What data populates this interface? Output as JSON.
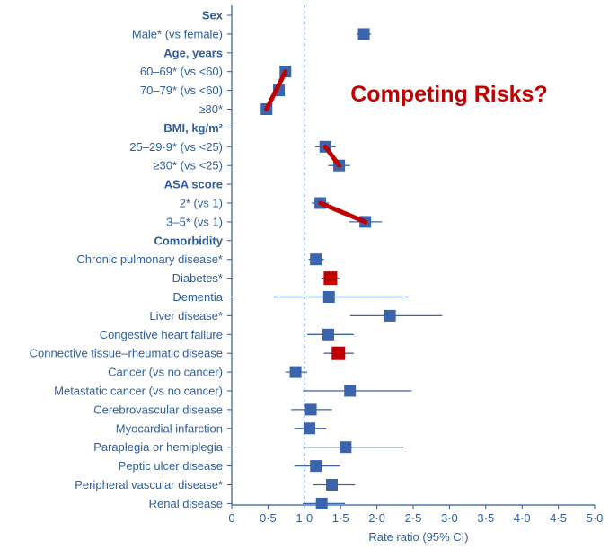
{
  "overlay_title": "Competing Risks?",
  "colors": {
    "text": "#2e5e9e",
    "marker": "#3b64ad",
    "highlight": "#c00000",
    "axis": "#2e5e9e"
  },
  "chart_data": {
    "type": "scatter",
    "subtype": "forest-plot",
    "xlabel": "Rate ratio (95% CI)",
    "xlim": [
      0,
      5
    ],
    "x_ticks": [
      "0",
      "0·5",
      "1·0",
      "1·5",
      "2·0",
      "2·5",
      "3·0",
      "3·5",
      "4·0",
      "4·5",
      "5·0"
    ],
    "reference_line": 1.0,
    "rows": [
      {
        "label": "Sex",
        "header": true
      },
      {
        "label": "Male* (vs female)",
        "value": 1.82,
        "ci": [
          1.72,
          1.92
        ]
      },
      {
        "label": "Age, years",
        "header": true
      },
      {
        "label": "60–69* (vs <60)",
        "value": 0.74,
        "ci": [
          0.69,
          0.79
        ]
      },
      {
        "label": "70–79* (vs <60)",
        "value": 0.65,
        "ci": [
          0.6,
          0.7
        ]
      },
      {
        "label": "≥80*",
        "value": 0.48,
        "ci": [
          0.44,
          0.53
        ]
      },
      {
        "label": "BMI, kg/m²",
        "header": true
      },
      {
        "label": "25–29·9* (vs <25)",
        "value": 1.29,
        "ci": [
          1.15,
          1.43
        ]
      },
      {
        "label": "≥30* (vs <25)",
        "value": 1.48,
        "ci": [
          1.33,
          1.63
        ]
      },
      {
        "label": "ASA score",
        "header": true
      },
      {
        "label": "2* (vs 1)",
        "value": 1.22,
        "ci": [
          1.1,
          1.34
        ]
      },
      {
        "label": "3–5* (vs 1)",
        "value": 1.84,
        "ci": [
          1.62,
          2.07
        ]
      },
      {
        "label": "Comorbidity",
        "header": true
      },
      {
        "label": "Chronic pulmonary disease*",
        "value": 1.16,
        "ci": [
          1.06,
          1.27
        ]
      },
      {
        "label": "Diabetes*",
        "value": 1.36,
        "ci": [
          1.24,
          1.48
        ],
        "highlight": true
      },
      {
        "label": "Dementia",
        "value": 1.34,
        "ci": [
          0.58,
          2.43
        ]
      },
      {
        "label": "Liver disease*",
        "value": 2.18,
        "ci": [
          1.63,
          2.9
        ]
      },
      {
        "label": "Congestive heart failure",
        "value": 1.33,
        "ci": [
          1.04,
          1.68
        ]
      },
      {
        "label": "Connective tissue–rheumatic disease",
        "value": 1.47,
        "ci": [
          1.27,
          1.68
        ],
        "highlight": true
      },
      {
        "label": "Cancer (vs no cancer)",
        "value": 0.88,
        "ci": [
          0.74,
          1.04
        ]
      },
      {
        "label": "Metastatic cancer (vs no cancer)",
        "value": 1.63,
        "ci": [
          0.98,
          2.48
        ]
      },
      {
        "label": "Cerebrovascular disease",
        "value": 1.09,
        "ci": [
          0.82,
          1.38
        ]
      },
      {
        "label": "Myocardial infarction",
        "value": 1.07,
        "ci": [
          0.86,
          1.3
        ]
      },
      {
        "label": "Paraplegia or hemiplegia",
        "value": 1.57,
        "ci": [
          0.98,
          2.37
        ]
      },
      {
        "label": "Peptic ulcer disease",
        "value": 1.16,
        "ci": [
          0.86,
          1.49
        ]
      },
      {
        "label": "Peripheral vascular disease*",
        "value": 1.38,
        "ci": [
          1.12,
          1.7
        ]
      },
      {
        "label": "Renal disease",
        "value": 1.24,
        "ci": [
          0.98,
          1.56
        ]
      }
    ],
    "annotations": [
      {
        "type": "arrow",
        "from_row": 3,
        "to_row": 5,
        "color": "#c00000"
      },
      {
        "type": "arrow",
        "from_row": 7,
        "to_row": 8,
        "color": "#c00000"
      },
      {
        "type": "arrow",
        "from_row": 10,
        "to_row": 11,
        "color": "#c00000"
      }
    ]
  }
}
